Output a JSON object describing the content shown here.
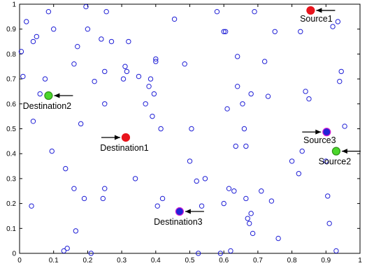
{
  "chart_data": {
    "type": "scatter",
    "title": "",
    "xlabel": "",
    "ylabel": "",
    "xlim": [
      0,
      1
    ],
    "ylim": [
      0,
      1
    ],
    "grid": false,
    "xticks": [
      "0",
      "0.1",
      "0.2",
      "0.3",
      "0.4",
      "0.5",
      "0.6",
      "0.7",
      "0.8",
      "0.9",
      "1"
    ],
    "yticks": [
      "0",
      "0.1",
      "0.2",
      "0.3",
      "0.4",
      "0.5",
      "0.6",
      "0.7",
      "0.8",
      "0.9",
      "1"
    ],
    "colors": {
      "node_stroke": "#1f1fd6",
      "source_red": "#e8141c",
      "source_green": "#4bd72b",
      "source_blue": "#2222d8",
      "highlight_stroke": "#d21fd2",
      "arrow": "#000000"
    },
    "nodes": [
      {
        "x": 0.005,
        "y": 0.81
      },
      {
        "x": 0.01,
        "y": 0.71
      },
      {
        "x": 0.02,
        "y": 0.93
      },
      {
        "x": 0.035,
        "y": 0.19
      },
      {
        "x": 0.04,
        "y": 0.53
      },
      {
        "x": 0.04,
        "y": 0.85
      },
      {
        "x": 0.05,
        "y": 0.87
      },
      {
        "x": 0.06,
        "y": 0.64
      },
      {
        "x": 0.075,
        "y": 0.7
      },
      {
        "x": 0.085,
        "y": 0.97
      },
      {
        "x": 0.095,
        "y": 0.41
      },
      {
        "x": 0.1,
        "y": 0.9
      },
      {
        "x": 0.13,
        "y": 0.01
      },
      {
        "x": 0.135,
        "y": 0.34
      },
      {
        "x": 0.14,
        "y": 0.02
      },
      {
        "x": 0.16,
        "y": 0.26
      },
      {
        "x": 0.16,
        "y": 0.76
      },
      {
        "x": 0.165,
        "y": 0.09
      },
      {
        "x": 0.17,
        "y": 0.83
      },
      {
        "x": 0.18,
        "y": 0.52
      },
      {
        "x": 0.19,
        "y": 0.22
      },
      {
        "x": 0.195,
        "y": 0.99
      },
      {
        "x": 0.2,
        "y": 0.9
      },
      {
        "x": 0.21,
        "y": 0.0
      },
      {
        "x": 0.22,
        "y": 0.69
      },
      {
        "x": 0.24,
        "y": 0.86
      },
      {
        "x": 0.245,
        "y": 0.22
      },
      {
        "x": 0.25,
        "y": 0.26
      },
      {
        "x": 0.25,
        "y": 0.6
      },
      {
        "x": 0.25,
        "y": 0.73
      },
      {
        "x": 0.255,
        "y": 0.97
      },
      {
        "x": 0.27,
        "y": 0.85
      },
      {
        "x": 0.305,
        "y": 0.7
      },
      {
        "x": 0.31,
        "y": 0.75
      },
      {
        "x": 0.315,
        "y": 0.73
      },
      {
        "x": 0.32,
        "y": 0.85
      },
      {
        "x": 0.34,
        "y": 0.3
      },
      {
        "x": 0.35,
        "y": 0.71
      },
      {
        "x": 0.37,
        "y": 0.6
      },
      {
        "x": 0.38,
        "y": 0.67
      },
      {
        "x": 0.385,
        "y": 0.7
      },
      {
        "x": 0.39,
        "y": 0.55
      },
      {
        "x": 0.395,
        "y": 0.64
      },
      {
        "x": 0.4,
        "y": 0.78
      },
      {
        "x": 0.4,
        "y": 0.77
      },
      {
        "x": 0.405,
        "y": 0.19
      },
      {
        "x": 0.415,
        "y": 0.5
      },
      {
        "x": 0.42,
        "y": 0.22
      },
      {
        "x": 0.455,
        "y": 0.94
      },
      {
        "x": 0.485,
        "y": 0.76
      },
      {
        "x": 0.5,
        "y": 0.37
      },
      {
        "x": 0.505,
        "y": 0.5
      },
      {
        "x": 0.52,
        "y": 0.29
      },
      {
        "x": 0.525,
        "y": 0.0
      },
      {
        "x": 0.535,
        "y": 0.19
      },
      {
        "x": 0.545,
        "y": 0.3
      },
      {
        "x": 0.58,
        "y": 0.97
      },
      {
        "x": 0.59,
        "y": 0.0
      },
      {
        "x": 0.6,
        "y": 0.2
      },
      {
        "x": 0.6,
        "y": 0.89
      },
      {
        "x": 0.605,
        "y": 0.89
      },
      {
        "x": 0.61,
        "y": 0.58
      },
      {
        "x": 0.615,
        "y": 0.26
      },
      {
        "x": 0.62,
        "y": 0.01
      },
      {
        "x": 0.63,
        "y": 0.25
      },
      {
        "x": 0.635,
        "y": 0.43
      },
      {
        "x": 0.64,
        "y": 0.79
      },
      {
        "x": 0.64,
        "y": 0.67
      },
      {
        "x": 0.655,
        "y": 0.6
      },
      {
        "x": 0.66,
        "y": 0.5
      },
      {
        "x": 0.665,
        "y": 0.43
      },
      {
        "x": 0.665,
        "y": 0.22
      },
      {
        "x": 0.67,
        "y": 0.14
      },
      {
        "x": 0.675,
        "y": 0.12
      },
      {
        "x": 0.68,
        "y": 0.64
      },
      {
        "x": 0.68,
        "y": 0.16
      },
      {
        "x": 0.685,
        "y": 0.08
      },
      {
        "x": 0.69,
        "y": 0.97
      },
      {
        "x": 0.71,
        "y": 0.25
      },
      {
        "x": 0.72,
        "y": 0.77
      },
      {
        "x": 0.73,
        "y": 0.63
      },
      {
        "x": 0.74,
        "y": 0.21
      },
      {
        "x": 0.75,
        "y": 0.89
      },
      {
        "x": 0.76,
        "y": 0.06
      },
      {
        "x": 0.8,
        "y": 0.37
      },
      {
        "x": 0.82,
        "y": 0.32
      },
      {
        "x": 0.825,
        "y": 0.89
      },
      {
        "x": 0.83,
        "y": 0.41
      },
      {
        "x": 0.84,
        "y": 0.65
      },
      {
        "x": 0.85,
        "y": 0.62
      },
      {
        "x": 0.9,
        "y": 0.37
      },
      {
        "x": 0.905,
        "y": 0.23
      },
      {
        "x": 0.91,
        "y": 0.12
      },
      {
        "x": 0.92,
        "y": 0.91
      },
      {
        "x": 0.93,
        "y": 0.01
      },
      {
        "x": 0.935,
        "y": 0.93
      },
      {
        "x": 0.94,
        "y": 0.69
      },
      {
        "x": 0.945,
        "y": 0.73
      },
      {
        "x": 0.955,
        "y": 0.51
      }
    ],
    "special_points": [
      {
        "label": "Source1",
        "x": 0.855,
        "y": 0.975,
        "fill": "#e8141c",
        "stroke": "#e8141c",
        "arrow": "left-of-label-pointing-left",
        "label_pos": "right-below"
      },
      {
        "label": "Destination2",
        "x": 0.085,
        "y": 0.633,
        "fill": "#4bd72b",
        "stroke": "#2f8f1a",
        "arrow": "right-pointing-left",
        "label_pos": "below"
      },
      {
        "label": "Destination1",
        "x": 0.312,
        "y": 0.465,
        "fill": "#e8141c",
        "stroke": "#e8141c",
        "arrow": "left-pointing-right",
        "label_pos": "below"
      },
      {
        "label": "Source3",
        "x": 0.902,
        "y": 0.487,
        "fill": "#2222d8",
        "stroke": "#d21fd2",
        "arrow": "left-pointing-right",
        "label_pos": "below-left"
      },
      {
        "label": "Source2",
        "x": 0.93,
        "y": 0.41,
        "fill": "#4bd72b",
        "stroke": "#2f8f1a",
        "arrow": "right-pointing-left",
        "label_pos": "below"
      },
      {
        "label": "Destination3",
        "x": 0.47,
        "y": 0.168,
        "fill": "#2222d8",
        "stroke": "#d21fd2",
        "arrow": "right-pointing-left",
        "label_pos": "below"
      }
    ]
  }
}
